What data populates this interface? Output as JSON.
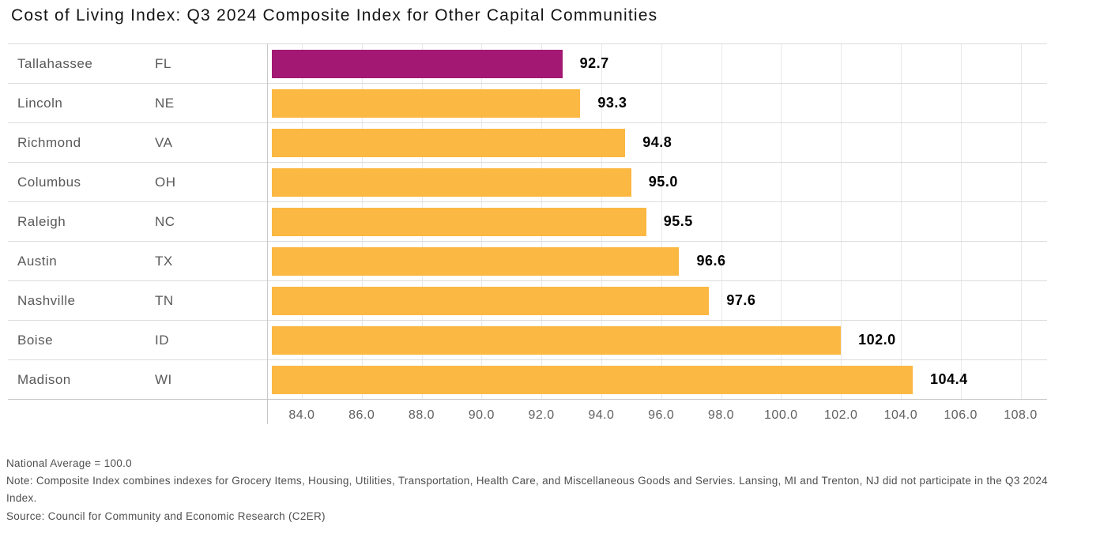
{
  "title": "Cost of Living Index: Q3 2024 Composite Index for Other Capital Communities",
  "chart_data": {
    "type": "bar",
    "orientation": "horizontal",
    "title": "Cost of Living Index: Q3 2024 Composite Index for Other Capital Communities",
    "rows": [
      {
        "city": "Tallahassee",
        "state": "FL",
        "value": 92.7,
        "label": "92.7",
        "highlight": true
      },
      {
        "city": "Lincoln",
        "state": "NE",
        "value": 93.3,
        "label": "93.3",
        "highlight": false
      },
      {
        "city": "Richmond",
        "state": "VA",
        "value": 94.8,
        "label": "94.8",
        "highlight": false
      },
      {
        "city": "Columbus",
        "state": "OH",
        "value": 95.0,
        "label": "95.0",
        "highlight": false
      },
      {
        "city": "Raleigh",
        "state": "NC",
        "value": 95.5,
        "label": "95.5",
        "highlight": false
      },
      {
        "city": "Austin",
        "state": "TX",
        "value": 96.6,
        "label": "96.6",
        "highlight": false
      },
      {
        "city": "Nashville",
        "state": "TN",
        "value": 97.6,
        "label": "97.6",
        "highlight": false
      },
      {
        "city": "Boise",
        "state": "ID",
        "value": 102.0,
        "label": "102.0",
        "highlight": false
      },
      {
        "city": "Madison",
        "state": "WI",
        "value": 104.4,
        "label": "104.4",
        "highlight": false
      }
    ],
    "x_ticks": [
      "84.0",
      "86.0",
      "88.0",
      "90.0",
      "92.0",
      "94.0",
      "96.0",
      "98.0",
      "100.0",
      "102.0",
      "104.0",
      "106.0",
      "108.0"
    ],
    "axis_min": 83.0,
    "axis_max": 108.9,
    "grid": true,
    "legend": "none",
    "colors": {
      "bar_default": "#FBB843",
      "bar_highlight": "#A21873"
    }
  },
  "footer": {
    "national_average": "National Average = 100.0",
    "note": "Note: Composite Index combines indexes for Grocery Items, Housing, Utilities, Transportation, Health Care, and Miscellaneous Goods and Servies. Lansing, MI and Trenton, NJ did not participate in the Q3 2024 Index.",
    "source": "Source: Council for Community and Economic Research (C2ER)"
  }
}
